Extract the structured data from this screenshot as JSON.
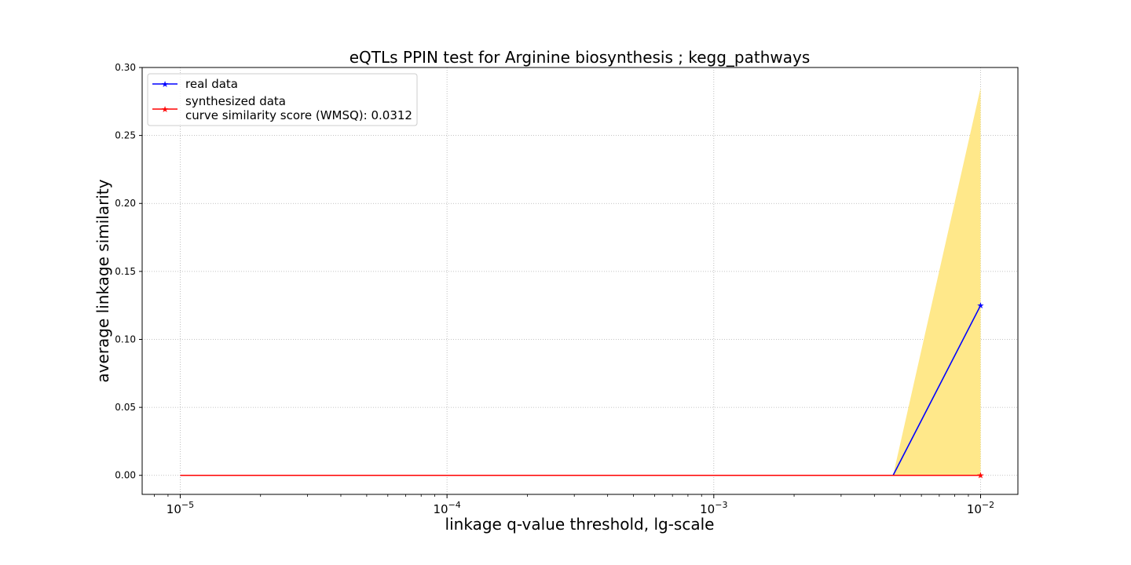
{
  "chart_data": {
    "type": "line",
    "title": "eQTLs PPIN test for Arginine biosynthesis ; kegg_pathways",
    "xlabel": "linkage q-value threshold, lg-scale",
    "ylabel": "average linkage similarity",
    "x_scale": "log",
    "xlim": [
      7.2e-06,
      0.0138
    ],
    "ylim": [
      -0.014,
      0.3
    ],
    "x_ticks": [
      {
        "value": 1e-05,
        "base": "10",
        "exp": "−5"
      },
      {
        "value": 0.0001,
        "base": "10",
        "exp": "−4"
      },
      {
        "value": 0.001,
        "base": "10",
        "exp": "−3"
      },
      {
        "value": 0.01,
        "base": "10",
        "exp": "−2"
      }
    ],
    "y_ticks": [
      "0.00",
      "0.05",
      "0.10",
      "0.15",
      "0.20",
      "0.25",
      "0.30"
    ],
    "grid": true,
    "legend_position": "upper-left",
    "series": [
      {
        "name": "real data",
        "color": "#0000ff",
        "marker": "star",
        "x": [
          1e-05,
          0.0047,
          0.01
        ],
        "y": [
          0.0,
          0.0,
          0.125
        ],
        "markers_at": [
          0.01
        ]
      },
      {
        "name": "synthesized data",
        "color": "#ff0000",
        "marker": "star",
        "x": [
          1e-05,
          0.0047,
          0.01
        ],
        "y": [
          0.0,
          0.0,
          0.0
        ],
        "markers_at": [
          0.01
        ]
      }
    ],
    "band": {
      "color": "#ffe88a",
      "x": [
        0.0047,
        0.01
      ],
      "lower": [
        0.0,
        0.0
      ],
      "upper": [
        0.0,
        0.285
      ]
    },
    "legend_note": "curve similarity score (WMSQ): 0.0312"
  }
}
